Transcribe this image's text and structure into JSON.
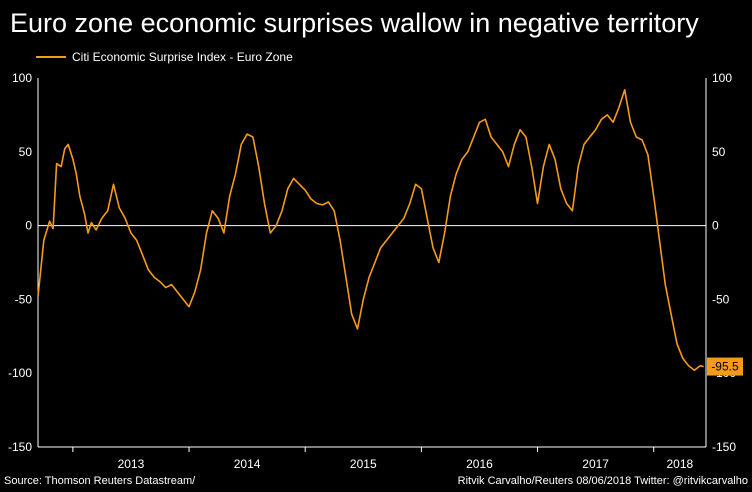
{
  "header": {
    "title": "Euro zone economic surprises wallow in negative territory",
    "legend_label": "Citi Economic Surprise Index - Euro Zone"
  },
  "footer": {
    "source": "Source: Thomson Reuters Datastream/",
    "credit": "Ritvik Carvalho/Reuters 08/06/2018 Twitter: @ritvikcarvalho"
  },
  "colors": {
    "series": "#f59b1b",
    "background": "#000000",
    "text": "#ffffff"
  },
  "chart_data": {
    "type": "line",
    "title": "Euro zone economic surprises wallow in negative territory",
    "xlabel": "",
    "ylabel": "",
    "ylim": [
      -150,
      100
    ],
    "xlim": [
      2012.7,
      2018.45
    ],
    "yticks": [
      "100",
      "50",
      "0",
      "-50",
      "-100",
      "-150"
    ],
    "ytick_values": [
      100,
      50,
      0,
      -50,
      -100,
      -150
    ],
    "year_labels": [
      "2013",
      "2014",
      "2015",
      "2016",
      "2017",
      "2018"
    ],
    "year_positions": [
      2013.0,
      2014.0,
      2015.0,
      2016.0,
      2017.0,
      2018.0
    ],
    "last_value": -95.5,
    "last_value_label": "-95.5",
    "series": [
      {
        "name": "Citi Economic Surprise Index - Euro Zone",
        "x": [
          2012.7,
          2012.75,
          2012.8,
          2012.83,
          2012.86,
          2012.9,
          2012.93,
          2012.96,
          2013.0,
          2013.03,
          2013.06,
          2013.1,
          2013.13,
          2013.16,
          2013.2,
          2013.25,
          2013.3,
          2013.35,
          2013.4,
          2013.45,
          2013.5,
          2013.55,
          2013.6,
          2013.65,
          2013.7,
          2013.75,
          2013.8,
          2013.85,
          2013.9,
          2013.95,
          2014.0,
          2014.05,
          2014.1,
          2014.15,
          2014.2,
          2014.25,
          2014.3,
          2014.35,
          2014.4,
          2014.45,
          2014.5,
          2014.55,
          2014.6,
          2014.65,
          2014.7,
          2014.75,
          2014.8,
          2014.85,
          2014.9,
          2014.95,
          2015.0,
          2015.05,
          2015.1,
          2015.15,
          2015.2,
          2015.25,
          2015.3,
          2015.35,
          2015.4,
          2015.45,
          2015.5,
          2015.55,
          2015.6,
          2015.65,
          2015.7,
          2015.75,
          2015.8,
          2015.85,
          2015.9,
          2015.95,
          2016.0,
          2016.05,
          2016.1,
          2016.15,
          2016.2,
          2016.25,
          2016.3,
          2016.35,
          2016.4,
          2016.45,
          2016.5,
          2016.55,
          2016.6,
          2016.65,
          2016.7,
          2016.75,
          2016.8,
          2016.85,
          2016.9,
          2016.95,
          2017.0,
          2017.05,
          2017.1,
          2017.15,
          2017.2,
          2017.25,
          2017.3,
          2017.35,
          2017.4,
          2017.45,
          2017.5,
          2017.55,
          2017.6,
          2017.65,
          2017.7,
          2017.75,
          2017.8,
          2017.85,
          2017.9,
          2017.95,
          2018.0,
          2018.05,
          2018.1,
          2018.15,
          2018.2,
          2018.25,
          2018.3,
          2018.35,
          2018.4,
          2018.43
        ],
        "values": [
          -48,
          -10,
          3,
          -2,
          42,
          40,
          52,
          55,
          45,
          35,
          20,
          8,
          -5,
          2,
          -3,
          5,
          10,
          28,
          12,
          5,
          -5,
          -10,
          -20,
          -30,
          -35,
          -38,
          -42,
          -40,
          -45,
          -50,
          -55,
          -45,
          -30,
          -5,
          10,
          5,
          -5,
          20,
          35,
          55,
          62,
          60,
          40,
          15,
          -5,
          0,
          10,
          25,
          32,
          28,
          24,
          18,
          15,
          14,
          16,
          10,
          -10,
          -35,
          -60,
          -70,
          -50,
          -35,
          -25,
          -15,
          -10,
          -5,
          0,
          5,
          15,
          28,
          25,
          5,
          -15,
          -25,
          -5,
          20,
          35,
          45,
          50,
          60,
          70,
          72,
          60,
          55,
          50,
          40,
          55,
          65,
          60,
          40,
          15,
          40,
          55,
          45,
          25,
          15,
          10,
          40,
          55,
          60,
          65,
          72,
          75,
          70,
          80,
          92,
          70,
          60,
          58,
          48,
          20,
          -10,
          -40,
          -60,
          -80,
          -90,
          -95,
          -98,
          -95,
          -95.5
        ]
      }
    ]
  }
}
